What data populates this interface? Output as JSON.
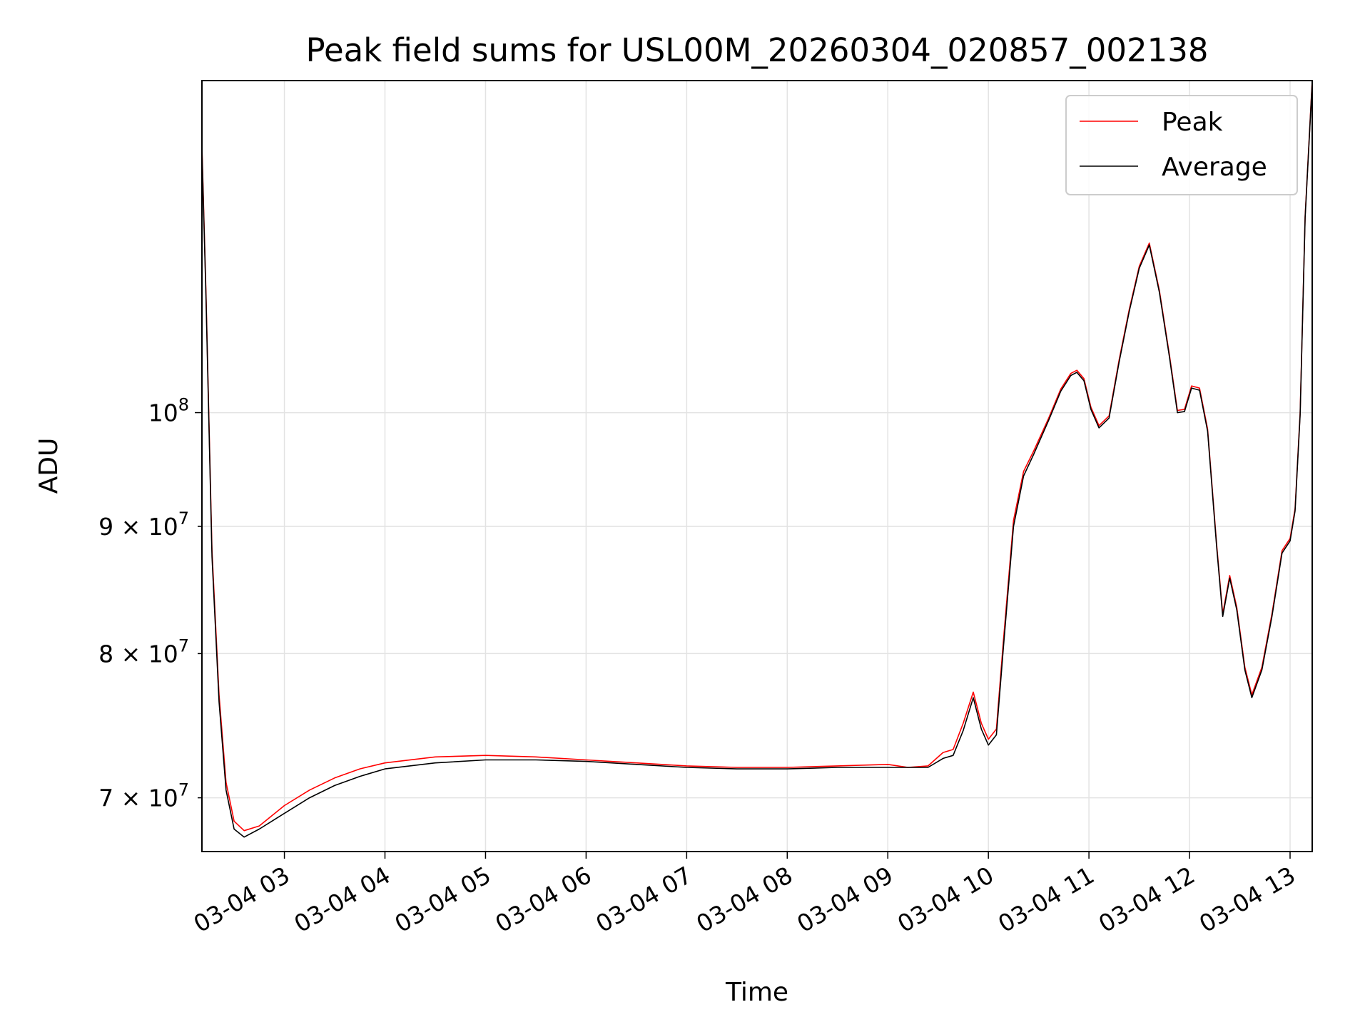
{
  "chart_data": {
    "type": "line",
    "title": "Peak field sums for USL00M_20260304_020857_002138",
    "xlabel": "Time",
    "ylabel": "ADU",
    "yscale": "log",
    "grid": true,
    "legend_position": "top-right",
    "x_unit": "hours since 03-04 02:00",
    "xlim": [
      0.18,
      11.22
    ],
    "ylim": [
      66600000,
      136000000
    ],
    "x_ticks": [
      {
        "value": 1,
        "label": "03-04 03"
      },
      {
        "value": 2,
        "label": "03-04 04"
      },
      {
        "value": 3,
        "label": "03-04 05"
      },
      {
        "value": 4,
        "label": "03-04 06"
      },
      {
        "value": 5,
        "label": "03-04 07"
      },
      {
        "value": 6,
        "label": "03-04 08"
      },
      {
        "value": 7,
        "label": "03-04 09"
      },
      {
        "value": 8,
        "label": "03-04 10"
      },
      {
        "value": 9,
        "label": "03-04 11"
      },
      {
        "value": 10,
        "label": "03-04 12"
      },
      {
        "value": 11,
        "label": "03-04 13"
      }
    ],
    "y_ticks": [
      {
        "value": 70000000,
        "mantissa": "7",
        "exponent": "7"
      },
      {
        "value": 80000000,
        "mantissa": "8",
        "exponent": "7"
      },
      {
        "value": 90000000,
        "mantissa": "9",
        "exponent": "7"
      },
      {
        "value": 100000000,
        "mantissa": "10",
        "exponent": "8",
        "major": true
      }
    ],
    "tick_times_symbol": "×",
    "series": [
      {
        "name": "Peak",
        "color": "#ff0000",
        "x": [
          0.18,
          0.22,
          0.28,
          0.35,
          0.42,
          0.5,
          0.6,
          0.75,
          1.0,
          1.25,
          1.5,
          1.75,
          2.0,
          2.5,
          3.0,
          3.5,
          4.0,
          4.5,
          5.0,
          5.5,
          6.0,
          6.5,
          7.0,
          7.2,
          7.4,
          7.55,
          7.65,
          7.75,
          7.85,
          7.93,
          8.0,
          8.08,
          8.15,
          8.25,
          8.35,
          8.45,
          8.6,
          8.72,
          8.82,
          8.88,
          8.95,
          9.02,
          9.1,
          9.2,
          9.3,
          9.4,
          9.5,
          9.6,
          9.7,
          9.8,
          9.88,
          9.95,
          10.02,
          10.1,
          10.18,
          10.27,
          10.33,
          10.4,
          10.47,
          10.55,
          10.62,
          10.72,
          10.82,
          10.92,
          11.0,
          11.05,
          11.1,
          11.15,
          11.22
        ],
        "y": [
          128000000,
          112000000,
          88000000,
          77000000,
          71000000,
          68500000,
          67900000,
          68200000,
          69500000,
          70500000,
          71300000,
          71900000,
          72300000,
          72700000,
          72800000,
          72700000,
          72500000,
          72300000,
          72100000,
          72000000,
          72000000,
          72100000,
          72200000,
          72000000,
          72100000,
          73000000,
          73200000,
          75000000,
          77200000,
          75000000,
          73900000,
          74600000,
          81000000,
          90500000,
          94700000,
          96500000,
          99500000,
          102200000,
          103700000,
          104000000,
          103200000,
          100500000,
          98800000,
          99700000,
          105000000,
          110000000,
          114500000,
          117000000,
          112000000,
          105500000,
          100200000,
          100300000,
          102500000,
          102300000,
          98500000,
          88500000,
          83000000,
          86000000,
          83500000,
          79000000,
          77000000,
          79000000,
          83000000,
          88000000,
          89000000,
          91500000,
          100000000,
          120000000,
          136000000
        ]
      },
      {
        "name": "Average",
        "color": "#000000",
        "x": [
          0.18,
          0.22,
          0.28,
          0.35,
          0.42,
          0.5,
          0.6,
          0.75,
          1.0,
          1.25,
          1.5,
          1.75,
          2.0,
          2.5,
          3.0,
          3.5,
          4.0,
          4.5,
          5.0,
          5.5,
          6.0,
          6.5,
          7.0,
          7.2,
          7.4,
          7.55,
          7.65,
          7.75,
          7.85,
          7.93,
          8.0,
          8.08,
          8.15,
          8.25,
          8.35,
          8.45,
          8.6,
          8.72,
          8.82,
          8.88,
          8.95,
          9.02,
          9.1,
          9.2,
          9.3,
          9.4,
          9.5,
          9.6,
          9.7,
          9.8,
          9.88,
          9.95,
          10.02,
          10.1,
          10.18,
          10.27,
          10.33,
          10.4,
          10.47,
          10.55,
          10.62,
          10.72,
          10.82,
          10.92,
          11.0,
          11.05,
          11.1,
          11.15,
          11.22
        ],
        "y": [
          127500000,
          111500000,
          87500000,
          76500000,
          70500000,
          68000000,
          67500000,
          68000000,
          69000000,
          70000000,
          70800000,
          71400000,
          71900000,
          72300000,
          72500000,
          72500000,
          72400000,
          72200000,
          72000000,
          71900000,
          71900000,
          72000000,
          72000000,
          72000000,
          72000000,
          72600000,
          72800000,
          74500000,
          76800000,
          74600000,
          73500000,
          74200000,
          80500000,
          90000000,
          94300000,
          96200000,
          99300000,
          102000000,
          103500000,
          103800000,
          103000000,
          100300000,
          98600000,
          99500000,
          104800000,
          109800000,
          114300000,
          116800000,
          111800000,
          105300000,
          100000000,
          100100000,
          102300000,
          102100000,
          98300000,
          88300000,
          82800000,
          85800000,
          83300000,
          78800000,
          76800000,
          78800000,
          82800000,
          87800000,
          88800000,
          91300000,
          99800000,
          119800000,
          135800000
        ]
      }
    ]
  }
}
